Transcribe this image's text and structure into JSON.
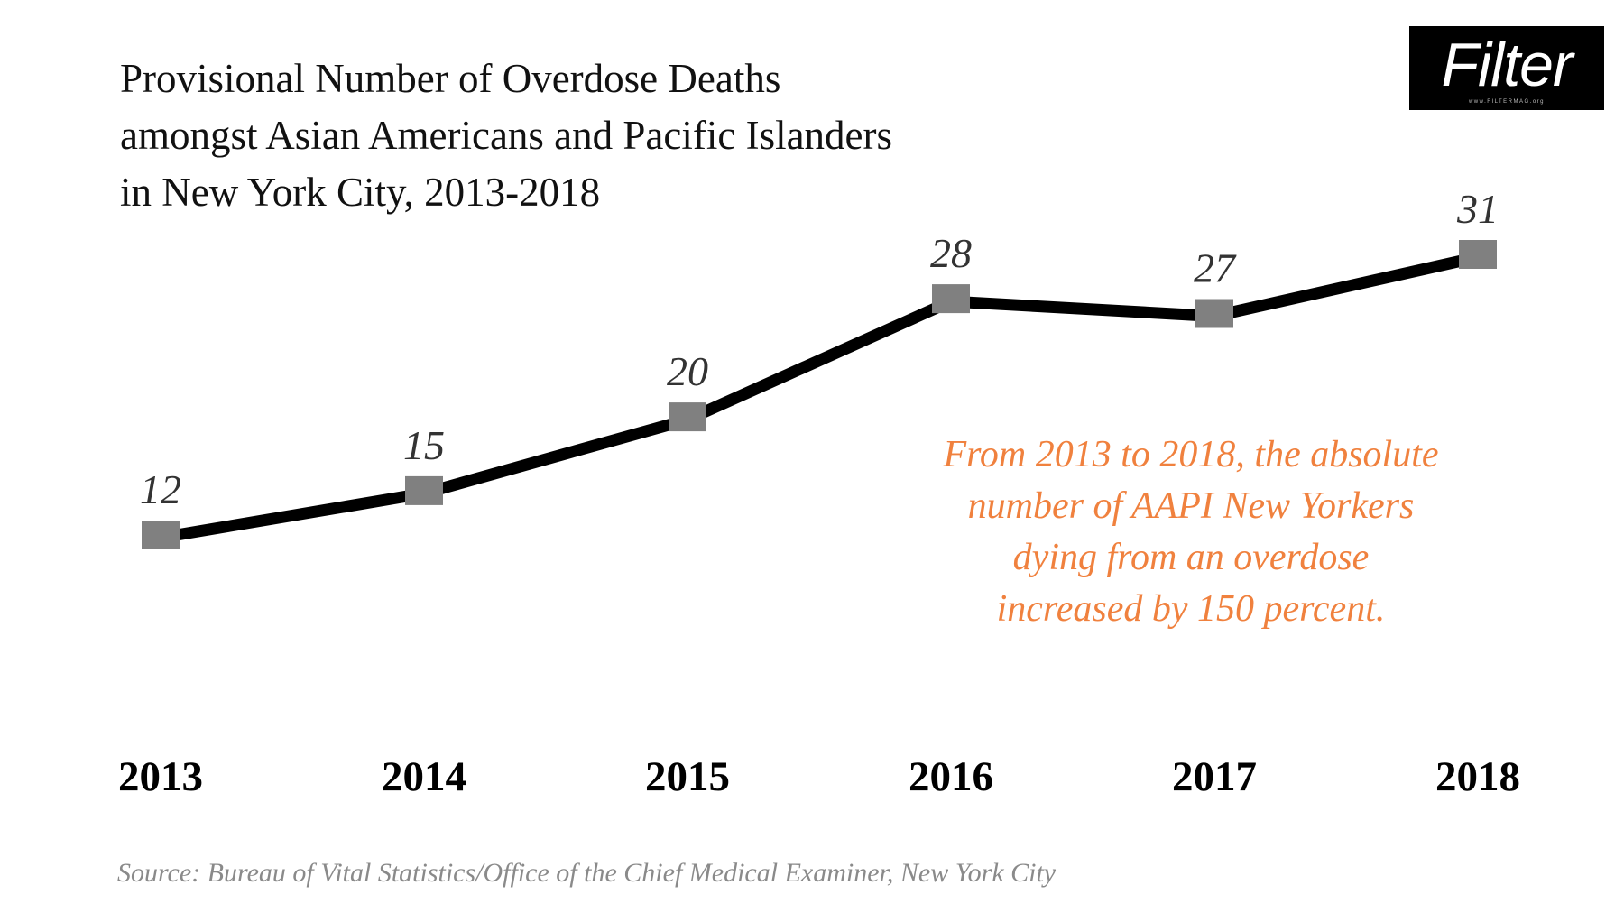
{
  "title_lines": [
    "Provisional Number of Overdose Deaths",
    "amongst Asian Americans and Pacific Islanders",
    "in New York City, 2013-2018"
  ],
  "logo": {
    "word": "Filter",
    "tagline": "www.FILTERMAG.org"
  },
  "annotation_lines": [
    "From 2013 to 2018, the absolute",
    "number of AAPI New Yorkers",
    "dying from an overdose",
    "increased by 150 percent."
  ],
  "source": "Source: Bureau of Vital Statistics/Office of the Chief Medical Examiner, New York City",
  "colors": {
    "line": "#000000",
    "marker": "#808080",
    "data_label": "#333333",
    "annotation": "#f0813e",
    "source": "#8a8a8a",
    "logo_bg": "#000000"
  },
  "chart_data": {
    "type": "line",
    "categories": [
      "2013",
      "2014",
      "2015",
      "2016",
      "2017",
      "2018"
    ],
    "values": [
      12,
      15,
      20,
      28,
      27,
      31
    ],
    "data_labels": [
      "12",
      "15",
      "20",
      "28",
      "27",
      "31"
    ],
    "title": "Provisional Number of Overdose Deaths amongst Asian Americans and Pacific Islanders in New York City, 2013-2018",
    "xlabel": "",
    "ylabel": "",
    "y_axis_visible": false,
    "grid": false,
    "legend": "none",
    "marker": "square"
  }
}
